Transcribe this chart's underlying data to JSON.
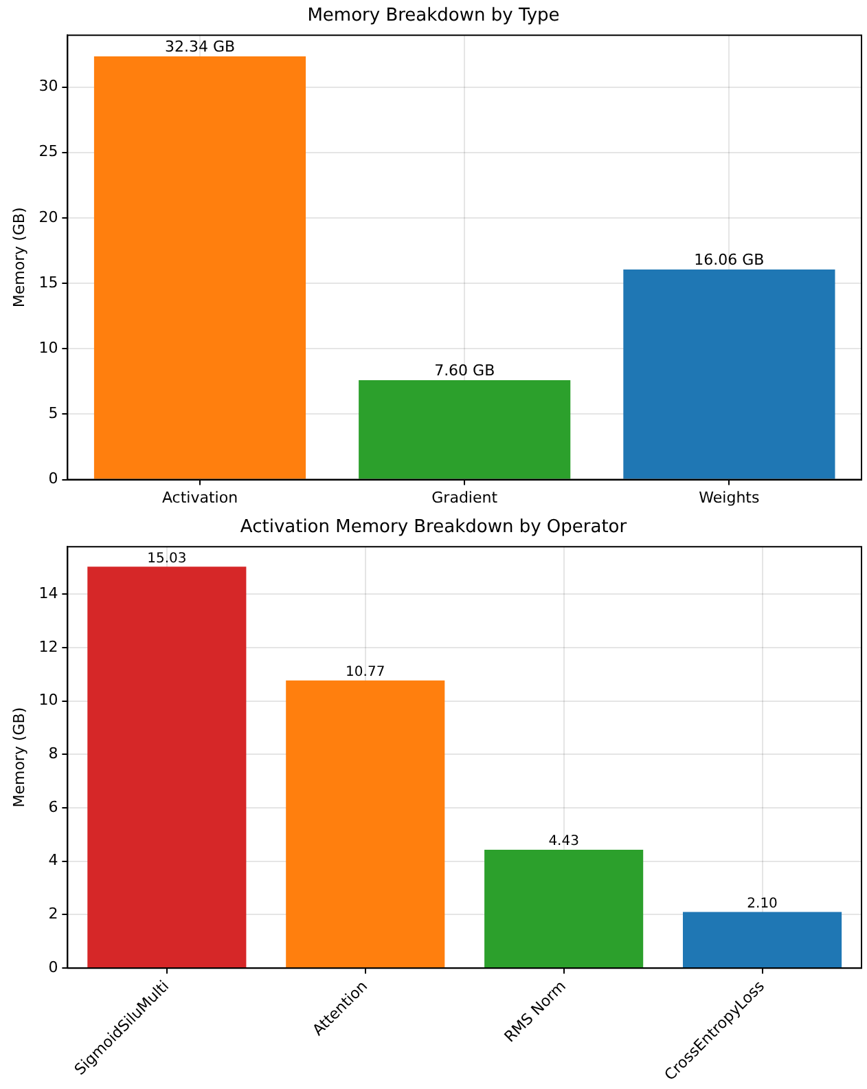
{
  "chart_data": [
    {
      "type": "bar",
      "title": "Memory Breakdown by Type",
      "ylabel": "Memory (GB)",
      "categories": [
        "Activation",
        "Gradient",
        "Weights"
      ],
      "values": [
        32.34,
        7.6,
        16.06
      ],
      "colors": [
        "#ff7f0e",
        "#2ca02c",
        "#1f77b4"
      ],
      "value_labels": [
        "32.34 GB",
        "7.60 GB",
        "16.06 GB"
      ],
      "ylim": [
        0,
        33.96
      ],
      "yticks": [
        0,
        5,
        10,
        15,
        20,
        25,
        30
      ],
      "grid": true,
      "legend": false
    },
    {
      "type": "bar",
      "title": "Activation Memory Breakdown by Operator",
      "ylabel": "Memory (GB)",
      "categories": [
        "SigmoidSiluMulti",
        "Attention",
        "RMS Norm",
        "CrossEntropyLoss"
      ],
      "values": [
        15.03,
        10.77,
        4.43,
        2.1
      ],
      "colors": [
        "#d62728",
        "#ff7f0e",
        "#2ca02c",
        "#1f77b4"
      ],
      "value_labels": [
        "15.03",
        "10.77",
        "4.43",
        "2.10"
      ],
      "ylim": [
        0,
        15.78
      ],
      "yticks": [
        0,
        2,
        4,
        6,
        8,
        10,
        12,
        14
      ],
      "grid": true,
      "legend": false
    }
  ]
}
